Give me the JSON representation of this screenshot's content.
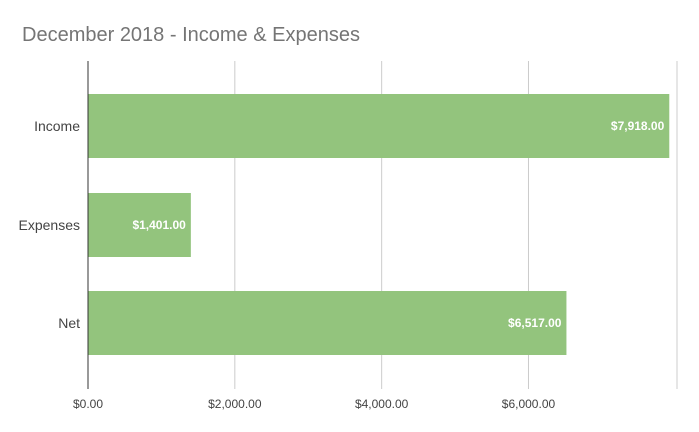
{
  "chart_data": {
    "type": "bar",
    "orientation": "horizontal",
    "title": "December 2018 - Income & Expenses",
    "categories": [
      "Income",
      "Expenses",
      "Net"
    ],
    "values": [
      7918,
      1401,
      6517
    ],
    "data_labels": [
      "$7,918.00",
      "$1,401.00",
      "$6,517.00"
    ],
    "x_ticks": [
      0,
      2000,
      4000,
      6000
    ],
    "x_tick_labels": [
      "$0.00",
      "$2,000.00",
      "$4,000.00",
      "$6,000.00"
    ],
    "xlim": [
      0,
      8000
    ],
    "grid": true,
    "legend": "none",
    "bar_color": "#93c47d",
    "axis_color": "#333333",
    "grid_color": "#cccccc"
  }
}
